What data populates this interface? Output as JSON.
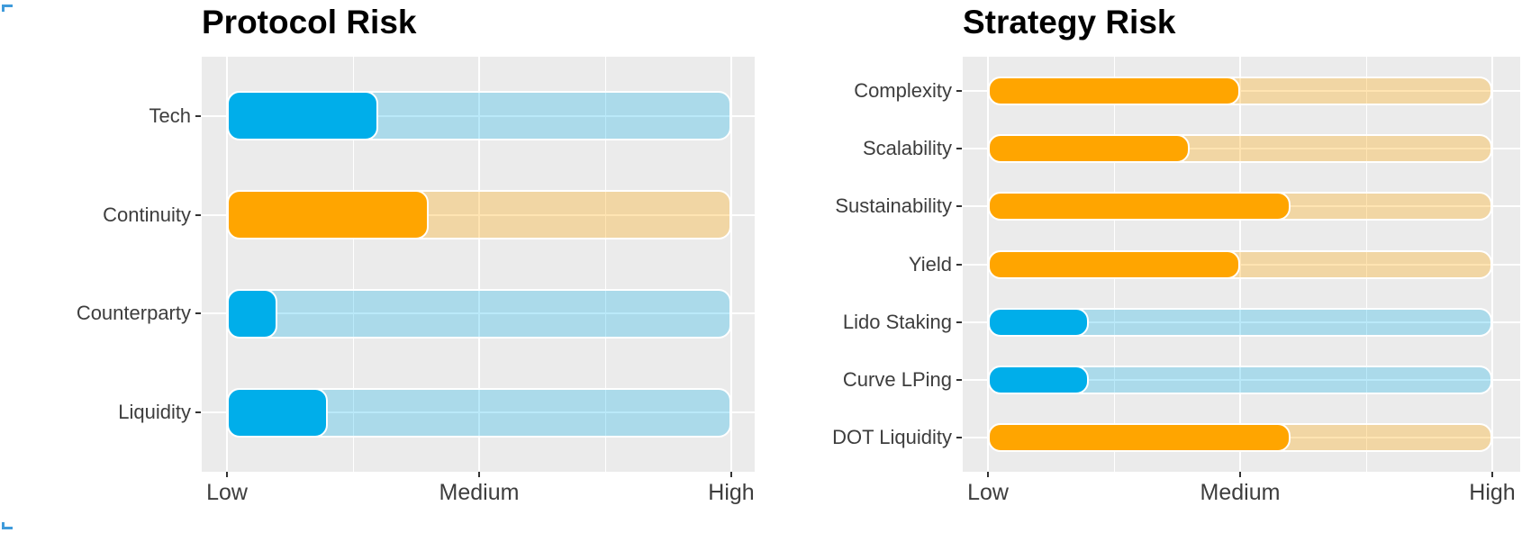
{
  "palette": {
    "blue": "#00AEEA",
    "orange": "#FFA500",
    "blue_track": "rgba(0,174,234,0.27)",
    "orange_track": "rgba(255,165,0,0.30)",
    "panel_background": "#EBEBEB",
    "gridline": "#FFFFFF",
    "axis_text": "#3D3D3D",
    "tick_mark": "#333333",
    "title_text": "#000000",
    "corner_mark": "#3F9BDB"
  },
  "chart_data": [
    {
      "type": "bar",
      "orientation": "horizontal",
      "title": "Protocol Risk",
      "categories": [
        "Tech",
        "Continuity",
        "Counterparty",
        "Liquidity"
      ],
      "values": [
        1.6,
        1.8,
        1.2,
        1.4
      ],
      "colors": [
        "blue",
        "orange",
        "blue",
        "blue"
      ],
      "track_full_value": 3,
      "xlabel": "",
      "ylabel": "",
      "x_ticks": [
        {
          "label": "Low",
          "value": 1
        },
        {
          "label": "Medium",
          "value": 2
        },
        {
          "label": "High",
          "value": 3
        }
      ],
      "xlim": [
        1,
        3
      ],
      "grid": "major-and-minor, white on gray panel",
      "legend": "none"
    },
    {
      "type": "bar",
      "orientation": "horizontal",
      "title": "Strategy Risk",
      "categories": [
        "Complexity",
        "Scalability",
        "Sustainability",
        "Yield",
        "Lido Staking",
        "Curve LPing",
        "DOT Liquidity"
      ],
      "values": [
        2.0,
        1.8,
        2.2,
        2.0,
        1.4,
        1.4,
        2.2
      ],
      "colors": [
        "orange",
        "orange",
        "orange",
        "orange",
        "blue",
        "blue",
        "orange"
      ],
      "track_full_value": 3,
      "xlabel": "",
      "ylabel": "",
      "x_ticks": [
        {
          "label": "Low",
          "value": 1
        },
        {
          "label": "Medium",
          "value": 2
        },
        {
          "label": "High",
          "value": 3
        }
      ],
      "xlim": [
        1,
        3
      ],
      "grid": "major-and-minor, white on gray panel",
      "legend": "none"
    }
  ]
}
